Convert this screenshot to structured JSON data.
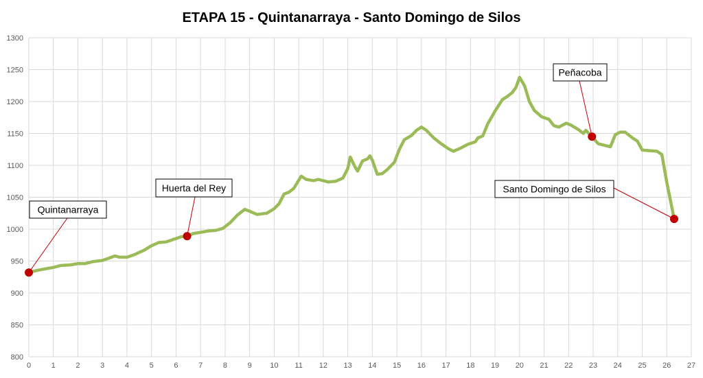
{
  "chart_data": {
    "type": "line",
    "title": "ETAPA 15 - Quintanarraya - Santo Domingo de Silos",
    "xlabel": "",
    "ylabel": "",
    "xlim": [
      0,
      27
    ],
    "ylim": [
      800,
      1300
    ],
    "x_ticks": [
      0,
      1,
      2,
      3,
      4,
      5,
      6,
      7,
      8,
      9,
      10,
      11,
      12,
      13,
      14,
      15,
      16,
      17,
      18,
      19,
      20,
      21,
      22,
      23,
      24,
      25,
      26,
      27
    ],
    "y_ticks": [
      800,
      850,
      900,
      950,
      1000,
      1050,
      1100,
      1150,
      1200,
      1250,
      1300
    ],
    "grid": true,
    "line_color": "#9BBB59",
    "marker_color": "#C00000",
    "series": [
      {
        "x": [
          0,
          0.3,
          0.7,
          1.0,
          1.3,
          1.7,
          2.0,
          2.3,
          2.6,
          3.0,
          3.3,
          3.5,
          3.7,
          4.0,
          4.3,
          4.7,
          5.0,
          5.3,
          5.6,
          5.9,
          6.2,
          6.45,
          6.7,
          7.0,
          7.3,
          7.6,
          7.9,
          8.2,
          8.5,
          8.8,
          9.0,
          9.3,
          9.5,
          9.7,
          10.0,
          10.2,
          10.4,
          10.6,
          10.8,
          11.1,
          11.3,
          11.6,
          11.8,
          12.2,
          12.5,
          12.8,
          13.0,
          13.1,
          13.3,
          13.4,
          13.6,
          13.8,
          13.9,
          14.0,
          14.2,
          14.4,
          14.6,
          14.9,
          15.1,
          15.3,
          15.6,
          15.8,
          16.0,
          16.2,
          16.5,
          16.8,
          17.1,
          17.3,
          17.6,
          17.9,
          18.2,
          18.3,
          18.5,
          18.7,
          19.0,
          19.3,
          19.5,
          19.7,
          19.85,
          20.0,
          20.2,
          20.4,
          20.6,
          20.9,
          21.2,
          21.4,
          21.6,
          21.9,
          22.1,
          22.4,
          22.6,
          22.7,
          22.95,
          23.2,
          23.5,
          23.7,
          23.9,
          24.1,
          24.3,
          24.6,
          24.8,
          25.0,
          25.3,
          25.6,
          25.8,
          26.0,
          26.3
        ],
        "y": [
          932,
          935,
          938,
          940,
          943,
          944,
          946,
          946,
          949,
          951,
          955,
          958,
          956,
          956,
          960,
          967,
          974,
          979,
          980,
          984,
          988,
          989,
          993,
          995,
          997,
          998,
          1001,
          1010,
          1022,
          1031,
          1028,
          1023,
          1024,
          1025,
          1032,
          1040,
          1055,
          1058,
          1064,
          1083,
          1078,
          1076,
          1078,
          1074,
          1075,
          1080,
          1095,
          1113,
          1097,
          1091,
          1107,
          1110,
          1115,
          1108,
          1086,
          1087,
          1093,
          1105,
          1125,
          1140,
          1147,
          1155,
          1160,
          1155,
          1143,
          1134,
          1126,
          1122,
          1127,
          1133,
          1137,
          1143,
          1146,
          1165,
          1185,
          1203,
          1208,
          1214,
          1222,
          1238,
          1225,
          1200,
          1186,
          1176,
          1172,
          1162,
          1160,
          1166,
          1163,
          1156,
          1150,
          1155,
          1145,
          1134,
          1131,
          1129,
          1148,
          1152,
          1152,
          1143,
          1138,
          1124,
          1123,
          1122,
          1117,
          1073,
          1016
        ]
      }
    ],
    "annotations": [
      {
        "label": "Quintanarraya",
        "x": 0,
        "y": 932
      },
      {
        "label": "Huerta del Rey",
        "x": 6.45,
        "y": 989
      },
      {
        "label": "Peñacoba",
        "x": 22.95,
        "y": 1145
      },
      {
        "label": "Santo Domingo de Silos",
        "x": 26.3,
        "y": 1016
      }
    ]
  }
}
